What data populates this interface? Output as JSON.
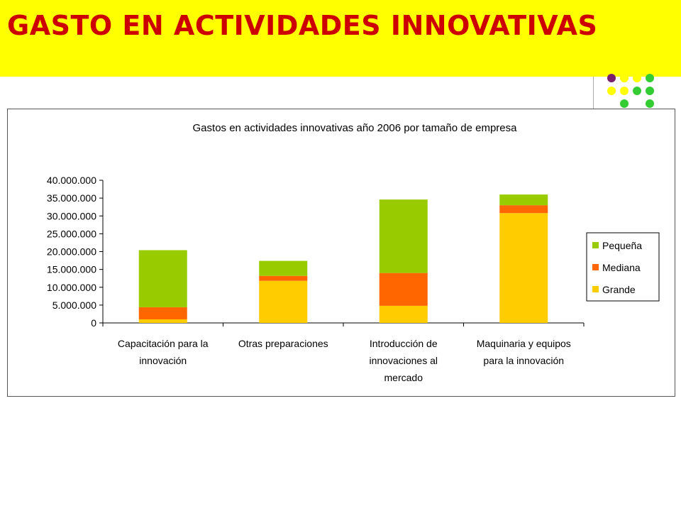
{
  "slide": {
    "title": "GASTO EN ACTIVIDADES INNOVATIVAS",
    "title_color": "#cc0000",
    "banner_color": "#ffff00"
  },
  "decor": {
    "dot_colors": {
      "purple": "#7a1f6e",
      "yellow": "#ffff00",
      "green": "#33cc33"
    }
  },
  "chart_data": {
    "type": "bar",
    "stacked": true,
    "title": "Gastos en actividades innovativas año 2006 por tamaño de empresa",
    "categories": [
      [
        "Capacitación para la",
        "innovación"
      ],
      [
        "Otras preparaciones"
      ],
      [
        "Introducción de",
        "innovaciones al",
        "mercado"
      ],
      [
        "Maquinaria y equipos",
        "para la innovación"
      ]
    ],
    "series": [
      {
        "name": "Grande",
        "color": "#ffcc00",
        "values": [
          1000000,
          11800000,
          4800000,
          30800000
        ]
      },
      {
        "name": "Mediana",
        "color": "#ff6600",
        "values": [
          3400000,
          1400000,
          9200000,
          2200000
        ]
      },
      {
        "name": "Pequeña",
        "color": "#99cc00",
        "values": [
          16000000,
          4200000,
          20600000,
          3000000
        ]
      }
    ],
    "y_ticks": [
      "0",
      "5.000.000",
      "10.000.000",
      "15.000.000",
      "20.000.000",
      "25.000.000",
      "30.000.000",
      "35.000.000",
      "40.000.000"
    ],
    "ylim": [
      0,
      40000000
    ],
    "ystep": 5000000,
    "legend_order": [
      "Pequeña",
      "Mediana",
      "Grande"
    ],
    "legend_position": "right",
    "grid": false
  }
}
